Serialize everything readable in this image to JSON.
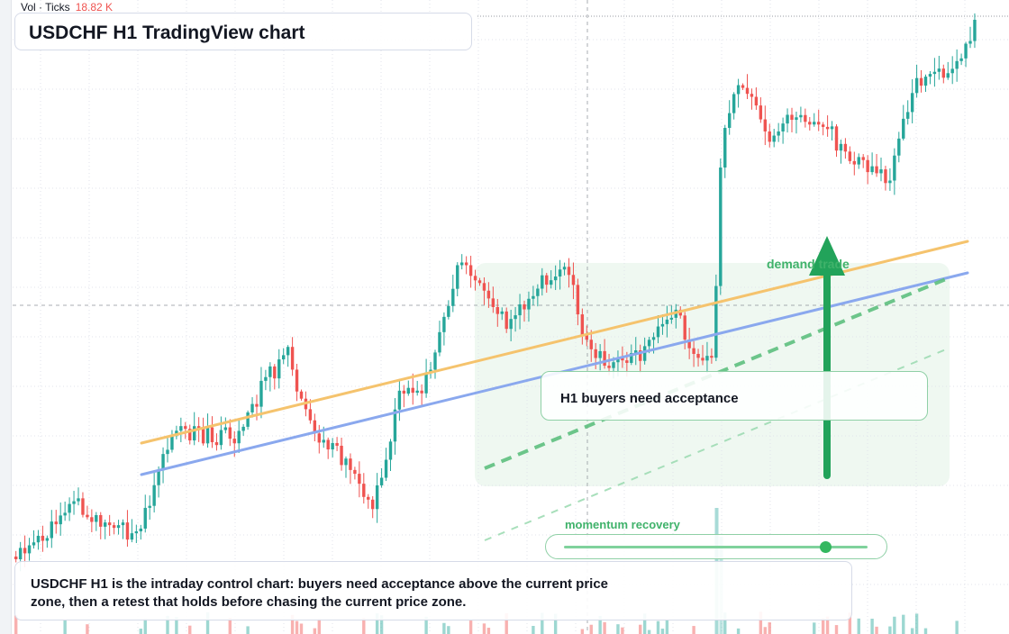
{
  "chart": {
    "title": "USDCHF H1 TradingView chart",
    "symbol": "USDCHF",
    "timeframe": "H1",
    "volume_legend": {
      "label": "Vol · Ticks",
      "value": "18.82 K"
    },
    "notes": {
      "acceptance": "H1 buyers need acceptance",
      "demand": "demand trade",
      "momentum": "momentum recovery",
      "momentum_level": 0.86,
      "summary": "USDCHF H1 is the intraday control chart: buyers need acceptance above the current price zone, then a retest that holds before chasing the current price zone."
    },
    "colors": {
      "up": "#26a69a",
      "down": "#ef5350",
      "grid": "#e0e3eb",
      "support_line": "#8aa8ee",
      "trend_line": "#f5c36d",
      "green_accent": "#22a35a",
      "demand_zone": "#e9f6ec"
    },
    "icons": [
      "up-arrow-icon"
    ]
  }
}
